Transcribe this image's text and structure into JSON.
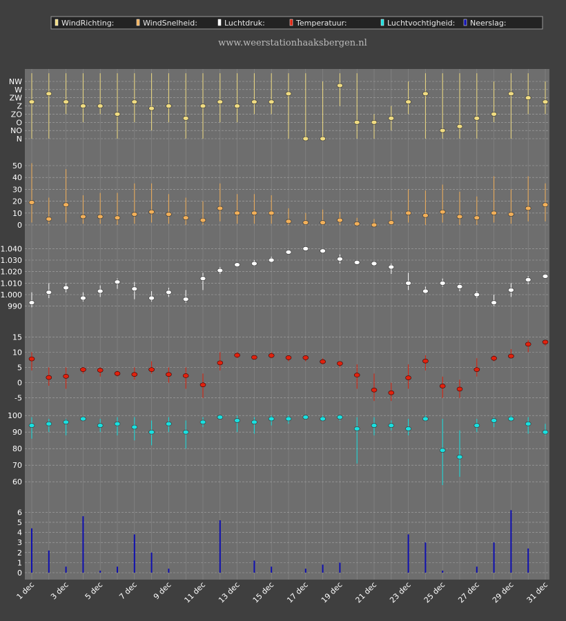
{
  "legend": [
    {
      "label": "WindRichting:",
      "color": "#f0dc82"
    },
    {
      "label": "WindSnelheid:",
      "color": "#f2b05a"
    },
    {
      "label": "Luchtdruk:",
      "color": "#ffffff"
    },
    {
      "label": "Temperatuur:",
      "color": "#e0220e"
    },
    {
      "label": "Luchtvochtigheid:",
      "color": "#19e0e0"
    },
    {
      "label": "Neerslag:",
      "color": "#1010b0"
    }
  ],
  "site_url": "www.weerstationhaaksbergen.nl",
  "x_labels": [
    "1 dec",
    "3 dec",
    "5 dec",
    "7 dec",
    "9 dec",
    "11 dec",
    "13 dec",
    "15 dec",
    "17 dec",
    "19 dec",
    "21 dec",
    "23 dec",
    "25 dec",
    "27 dec",
    "29 dec",
    "31 dec"
  ],
  "chart_data": [
    {
      "type": "scatter",
      "name": "WindRichting",
      "color": "#f0dc82",
      "x": [
        1,
        2,
        3,
        4,
        5,
        6,
        7,
        8,
        9,
        10,
        11,
        12,
        13,
        14,
        15,
        16,
        17,
        18,
        19,
        20,
        21,
        22,
        23,
        24,
        25,
        26,
        27,
        28,
        29,
        30,
        31
      ],
      "y_categories": [
        "N",
        "NO",
        "O",
        "ZO",
        "Z",
        "ZW",
        "W",
        "NW"
      ],
      "y": [
        4.5,
        5.5,
        4.5,
        4.0,
        4.0,
        3.0,
        4.5,
        3.7,
        4.0,
        2.5,
        4.0,
        4.5,
        4.0,
        4.5,
        4.5,
        5.5,
        0.0,
        0.0,
        6.5,
        2.0,
        2.0,
        2.5,
        4.5,
        5.5,
        1.0,
        1.5,
        2.5,
        3.0,
        5.5,
        5.0,
        4.5
      ],
      "low": [
        0,
        0,
        3,
        2,
        3,
        0,
        2,
        1,
        2,
        0,
        0,
        2,
        2,
        3,
        3,
        0,
        0,
        0,
        4,
        0,
        0,
        1,
        3,
        0,
        0,
        0,
        0,
        2,
        0,
        3,
        3
      ],
      "high": [
        8,
        8,
        8,
        8,
        8,
        8,
        8,
        8,
        8,
        8,
        8,
        8,
        8,
        8,
        8,
        8,
        8,
        7,
        8,
        8,
        3,
        4,
        7,
        8,
        8,
        8,
        8,
        7,
        8,
        8,
        7
      ],
      "ylim": [
        0,
        7
      ]
    },
    {
      "type": "scatter",
      "name": "WindSnelheid",
      "color": "#f2b05a",
      "x": [
        1,
        2,
        3,
        4,
        5,
        6,
        7,
        8,
        9,
        10,
        11,
        12,
        13,
        14,
        15,
        16,
        17,
        18,
        19,
        20,
        21,
        22,
        23,
        24,
        25,
        26,
        27,
        28,
        29,
        30,
        31
      ],
      "y": [
        19,
        5,
        17,
        7,
        7,
        6,
        9,
        11,
        9,
        6,
        4,
        14,
        10,
        10,
        10,
        3,
        2,
        2,
        4,
        1,
        0,
        2,
        10,
        8,
        11,
        7,
        6,
        10,
        9,
        14,
        17
      ],
      "low": [
        2,
        1,
        2,
        1,
        1,
        0,
        1,
        2,
        1,
        0,
        0,
        3,
        1,
        1,
        1,
        0,
        0,
        0,
        0,
        0,
        0,
        0,
        2,
        0,
        2,
        0,
        0,
        2,
        1,
        3,
        3
      ],
      "high": [
        52,
        23,
        47,
        25,
        27,
        27,
        35,
        35,
        26,
        23,
        20,
        35,
        26,
        26,
        25,
        14,
        10,
        13,
        11,
        6,
        5,
        12,
        30,
        29,
        34,
        28,
        24,
        41,
        30,
        41,
        35
      ],
      "yticks": [
        0,
        10,
        20,
        30,
        40,
        50
      ],
      "ylim": [
        0,
        50
      ]
    },
    {
      "type": "scatter",
      "name": "Luchtdruk",
      "color": "#ffffff",
      "x": [
        1,
        2,
        3,
        4,
        5,
        6,
        7,
        8,
        9,
        10,
        11,
        12,
        13,
        14,
        15,
        16,
        17,
        18,
        19,
        20,
        21,
        22,
        23,
        24,
        25,
        26,
        27,
        28,
        29,
        30,
        31
      ],
      "y": [
        993,
        1002,
        1006,
        997,
        1003,
        1011,
        1005,
        997,
        1002,
        996,
        1014,
        1021,
        1026,
        1027,
        1030,
        1037,
        1040,
        1038,
        1031,
        1028,
        1027,
        1024,
        1010,
        1003,
        1010,
        1007,
        1000,
        993,
        1004,
        1013,
        1016
      ],
      "low": [
        989,
        997,
        1002,
        994,
        998,
        1005,
        996,
        994,
        998,
        993,
        1004,
        1018,
        1024,
        1025,
        1028,
        1035,
        1038,
        1036,
        1027,
        1027,
        1025,
        1018,
        1004,
        1001,
        1007,
        1003,
        997,
        990,
        998,
        1009,
        1015
      ],
      "high": [
        1002,
        1010,
        1010,
        1002,
        1008,
        1014,
        1011,
        1003,
        1006,
        1004,
        1019,
        1024,
        1027,
        1030,
        1033,
        1039,
        1042,
        1040,
        1035,
        1030,
        1029,
        1027,
        1019,
        1007,
        1014,
        1010,
        1003,
        1000,
        1010,
        1016,
        1018
      ],
      "yticks": [
        990,
        1000,
        1010,
        1020,
        1030,
        1040
      ],
      "tick_labels": [
        "990",
        "1.000",
        "1.010",
        "1.020",
        "1.030",
        "1.040"
      ],
      "ylim": [
        985,
        1045
      ]
    },
    {
      "type": "scatter",
      "name": "Temperatuur",
      "color": "#e0220e",
      "x": [
        1,
        2,
        3,
        4,
        5,
        6,
        7,
        8,
        9,
        10,
        11,
        12,
        13,
        14,
        15,
        16,
        17,
        18,
        19,
        20,
        21,
        22,
        23,
        24,
        25,
        26,
        27,
        28,
        29,
        30,
        31
      ],
      "y": [
        7.8,
        1.7,
        2.1,
        4.3,
        4.1,
        3.0,
        2.7,
        4.3,
        2.7,
        2.3,
        -0.7,
        6.5,
        9.0,
        8.3,
        8.9,
        8.2,
        8.2,
        6.9,
        6.3,
        2.5,
        -2.4,
        -3.3,
        1.6,
        7.1,
        -1.1,
        -2.1,
        4.3,
        8.0,
        8.7,
        12.6,
        13.3
      ],
      "low": [
        4,
        -1,
        -2,
        3,
        2,
        2,
        1,
        3,
        0,
        -2,
        -5,
        4,
        8,
        8,
        8,
        7,
        7,
        6,
        5,
        -2,
        -6,
        -6,
        -2,
        4,
        -5,
        -5,
        2,
        7,
        8,
        10,
        12
      ],
      "high": [
        10,
        5,
        5,
        5,
        5,
        4,
        5,
        7,
        5,
        5,
        3,
        10,
        10,
        9,
        10,
        9,
        9,
        8,
        7,
        6,
        3,
        0,
        6,
        9,
        2,
        1,
        8,
        9,
        11,
        14,
        14
      ],
      "yticks": [
        -5,
        0,
        5,
        10,
        15
      ],
      "ylim": [
        -8,
        18
      ]
    },
    {
      "type": "scatter",
      "name": "Luchtvochtigheid",
      "color": "#19e0e0",
      "x": [
        1,
        2,
        3,
        4,
        5,
        6,
        7,
        8,
        9,
        10,
        11,
        12,
        13,
        14,
        15,
        16,
        17,
        18,
        19,
        20,
        21,
        22,
        23,
        24,
        25,
        26,
        27,
        28,
        29,
        30,
        31
      ],
      "y": [
        94,
        95,
        96,
        98,
        94,
        95,
        93,
        90,
        95,
        90,
        96,
        99,
        97,
        96,
        98,
        98,
        99,
        98,
        99,
        92,
        94,
        94,
        92,
        98,
        79,
        75,
        94,
        97,
        98,
        95,
        90
      ],
      "low": [
        86,
        90,
        88,
        97,
        90,
        88,
        85,
        82,
        90,
        80,
        93,
        98,
        90,
        89,
        94,
        95,
        98,
        97,
        97,
        71,
        88,
        91,
        88,
        97,
        58,
        63,
        90,
        93,
        97,
        89,
        88
      ],
      "high": [
        99,
        98,
        98,
        99,
        98,
        99,
        99,
        97,
        99,
        97,
        99,
        100,
        100,
        99,
        100,
        100,
        100,
        100,
        100,
        99,
        99,
        97,
        98,
        100,
        98,
        91,
        98,
        99,
        100,
        99,
        95
      ],
      "yticks": [
        60,
        70,
        80,
        90,
        100
      ],
      "ylim": [
        53,
        103
      ]
    },
    {
      "type": "bar",
      "name": "Neerslag",
      "color": "#1010b0",
      "x": [
        1,
        2,
        3,
        4,
        5,
        6,
        7,
        8,
        9,
        10,
        11,
        12,
        13,
        14,
        15,
        16,
        17,
        18,
        19,
        20,
        21,
        22,
        23,
        24,
        25,
        26,
        27,
        28,
        29,
        30,
        31
      ],
      "values": [
        4.4,
        2.2,
        0.6,
        5.6,
        0.2,
        0.6,
        3.8,
        2.0,
        0.4,
        0,
        0,
        5.2,
        0,
        1.2,
        0.6,
        0,
        0.4,
        0.8,
        1.0,
        0,
        0,
        0,
        3.8,
        3.0,
        0.2,
        0,
        0.6,
        3.0,
        6.2,
        2.4,
        0
      ],
      "yticks": [
        0,
        1,
        2,
        3,
        4,
        5,
        6
      ],
      "ylim": [
        0,
        6.5
      ]
    }
  ]
}
